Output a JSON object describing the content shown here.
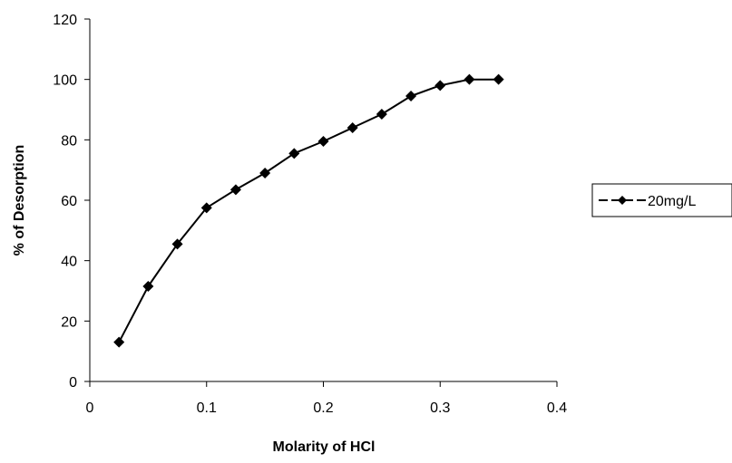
{
  "chart_data": {
    "type": "line",
    "title": "",
    "xlabel": "Molarity of HCl",
    "ylabel": "% of Desorption",
    "xlim": [
      0,
      0.4
    ],
    "ylim": [
      0,
      120
    ],
    "xticks": [
      0,
      0.1,
      0.2,
      0.3,
      0.4
    ],
    "xtick_labels": [
      "0",
      "0.1",
      "0.2",
      "0.3",
      "0.4"
    ],
    "yticks": [
      0,
      20,
      40,
      60,
      80,
      100,
      120
    ],
    "ytick_labels": [
      "0",
      "20",
      "40",
      "60",
      "80",
      "100",
      "120"
    ],
    "grid": false,
    "legend_position": "right",
    "series": [
      {
        "name": "20mg/L",
        "color": "#000000",
        "marker": "diamond",
        "x": [
          0.025,
          0.05,
          0.075,
          0.1,
          0.125,
          0.15,
          0.175,
          0.2,
          0.225,
          0.25,
          0.275,
          0.3,
          0.325,
          0.35
        ],
        "y": [
          13,
          31.5,
          45.5,
          57.5,
          63.5,
          69,
          75.5,
          79.5,
          84,
          88.5,
          94.5,
          98,
          100,
          100
        ]
      }
    ]
  }
}
